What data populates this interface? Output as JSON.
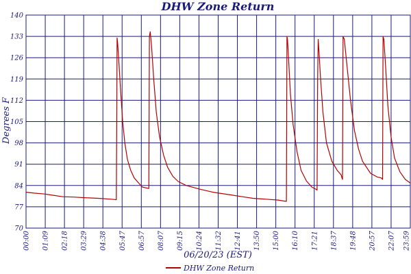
{
  "chart_data": {
    "type": "line",
    "title": "DHW Zone Return",
    "xlabel": "06/20/23 (EST)",
    "ylabel": "Degrees F",
    "ylim": [
      70,
      140
    ],
    "xlim": [
      0,
      1439
    ],
    "grid": true,
    "legend_position": "bottom-center",
    "line_color": "#b30000",
    "frame_color": "#1a1a7a",
    "y_ticks": [
      "70",
      "77",
      "84",
      "91",
      "98",
      "105",
      "112",
      "119",
      "126",
      "133",
      "140"
    ],
    "x_ticks": [
      "00:00",
      "01:09",
      "02:18",
      "03:29",
      "04:38",
      "05:47",
      "06:57",
      "08:07",
      "09:15",
      "10:24",
      "11:32",
      "12:41",
      "13:50",
      "15:00",
      "16:10",
      "17:21",
      "18:37",
      "19:48",
      "20:57",
      "22:07",
      "23:59"
    ],
    "series": [
      {
        "name": "DHW Zone Return",
        "x_minutes": [
          0,
          30,
          69,
          100,
          138,
          180,
          218,
          270,
          320,
          330,
          338,
          340,
          341,
          343,
          348,
          355,
          362,
          370,
          380,
          392,
          405,
          420,
          435,
          460,
          462,
          465,
          470,
          478,
          488,
          500,
          515,
          530,
          550,
          570,
          600,
          650,
          700,
          760,
          810,
          850,
          900,
          945,
          966,
          975,
          977,
          979,
          983,
          990,
          1000,
          1015,
          1030,
          1050,
          1070,
          1085,
          1090,
          1092,
          1094,
          1097,
          1103,
          1112,
          1125,
          1145,
          1165,
          1180,
          1183,
          1185,
          1187,
          1192,
          1200,
          1215,
          1230,
          1245,
          1260,
          1290,
          1315,
          1330,
          1335,
          1337,
          1340,
          1346,
          1355,
          1367,
          1380,
          1400,
          1420,
          1439
        ],
        "values": [
          81.8,
          81.5,
          81.2,
          80.8,
          80.3,
          80.2,
          80.0,
          79.8,
          79.5,
          79.4,
          79.3,
          113.0,
          132.5,
          131.0,
          124.0,
          114.0,
          105.0,
          98.0,
          92.5,
          89.0,
          86.5,
          85.0,
          83.5,
          83.0,
          133.0,
          134.5,
          130.0,
          119.0,
          108.0,
          100.0,
          94.0,
          90.0,
          87.0,
          85.3,
          84.0,
          82.8,
          81.8,
          81.0,
          80.3,
          79.8,
          79.5,
          79.2,
          78.9,
          78.8,
          133.0,
          132.0,
          126.0,
          114.0,
          104.0,
          95.0,
          89.0,
          85.5,
          83.5,
          82.8,
          82.5,
          119.0,
          132.0,
          128.0,
          119.0,
          108.0,
          98.0,
          92.0,
          89.0,
          87.5,
          86.5,
          86.0,
          133.0,
          132.0,
          125.0,
          112.0,
          102.0,
          96.0,
          92.0,
          88.0,
          86.8,
          86.5,
          86.0,
          133.0,
          132.0,
          124.0,
          110.0,
          100.0,
          93.0,
          88.5,
          86.0,
          84.8
        ]
      }
    ]
  }
}
